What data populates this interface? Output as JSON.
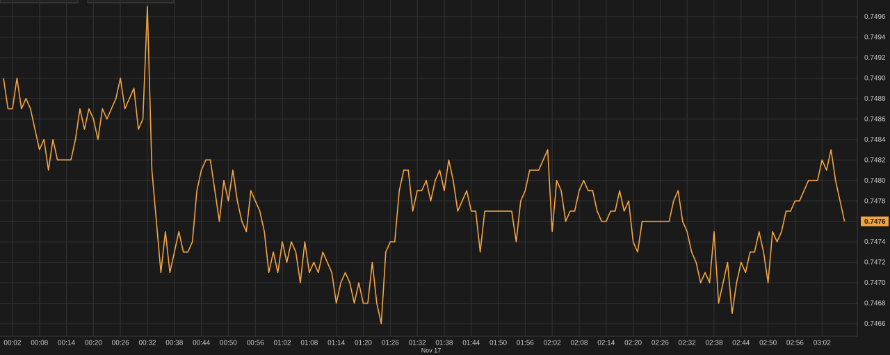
{
  "chart_data": {
    "type": "line",
    "date_label": "Nov 17",
    "color": "#f5a442",
    "grid": true,
    "xlim": [
      "00:00",
      "03:10"
    ],
    "xticks": [
      "00:02",
      "00:08",
      "00:14",
      "00:20",
      "00:26",
      "00:32",
      "00:38",
      "00:44",
      "00:50",
      "00:56",
      "01:02",
      "01:08",
      "01:14",
      "01:20",
      "01:26",
      "01:32",
      "01:38",
      "01:44",
      "01:50",
      "01:56",
      "02:02",
      "02:08",
      "02:14",
      "02:20",
      "02:26",
      "02:32",
      "02:38",
      "02:44",
      "02:50",
      "02:56",
      "03:02"
    ],
    "ylim": [
      0.7465,
      0.7498
    ],
    "yticks": [
      0.7466,
      0.7468,
      {
        "value": 0.747,
        "label": "0.7470"
      },
      0.7472,
      0.7474,
      0.7476,
      0.7478,
      {
        "value": 0.748,
        "label": "0.7480"
      },
      0.7482,
      0.7484,
      0.7486,
      0.7488,
      {
        "value": 0.749,
        "label": "0.7490"
      },
      0.7492,
      0.7494,
      0.7496
    ],
    "x": [
      "00:00",
      "00:01",
      "00:02",
      "00:03",
      "00:04",
      "00:05",
      "00:06",
      "00:07",
      "00:08",
      "00:09",
      "00:10",
      "00:11",
      "00:12",
      "00:15",
      "00:16",
      "00:17",
      "00:18",
      "00:19",
      "00:20",
      "00:21",
      "00:22",
      "00:23",
      "00:25",
      "00:26",
      "00:27",
      "00:29",
      "00:30",
      "00:31",
      "00:32",
      "00:33",
      "00:34",
      "00:35",
      "00:36",
      "00:37",
      "00:39",
      "00:40",
      "00:41",
      "00:42",
      "00:43",
      "00:44",
      "00:45",
      "00:46",
      "00:47",
      "00:48",
      "00:49",
      "00:50",
      "00:51",
      "00:52",
      "00:53",
      "00:54",
      "00:55",
      "00:57",
      "00:58",
      "00:59",
      "01:00",
      "01:01",
      "01:02",
      "01:03",
      "01:04",
      "01:05",
      "01:06",
      "01:07",
      "01:08",
      "01:09",
      "01:10",
      "01:11",
      "01:13",
      "01:14",
      "01:15",
      "01:16",
      "01:17",
      "01:18",
      "01:19",
      "01:20",
      "01:21",
      "01:22",
      "01:23",
      "01:24",
      "01:25",
      "01:26",
      "01:27",
      "01:28",
      "01:29",
      "01:30",
      "01:31",
      "01:32",
      "01:33",
      "01:34",
      "01:35",
      "01:36",
      "01:37",
      "01:38",
      "01:39",
      "01:40",
      "01:41",
      "01:43",
      "01:44",
      "01:45",
      "01:46",
      "01:47",
      "01:53",
      "01:54",
      "01:55",
      "01:56",
      "01:57",
      "01:59",
      "02:01",
      "02:02",
      "02:03",
      "02:04",
      "02:05",
      "02:06",
      "02:07",
      "02:08",
      "02:09",
      "02:10",
      "02:11",
      "02:12",
      "02:13",
      "02:14",
      "02:15",
      "02:16",
      "02:17",
      "02:18",
      "02:19",
      "02:20",
      "02:21",
      "02:22",
      "02:28",
      "02:29",
      "02:30",
      "02:31",
      "02:32",
      "02:33",
      "02:34",
      "02:35",
      "02:36",
      "02:37",
      "02:38",
      "02:39",
      "02:40",
      "02:41",
      "02:42",
      "02:43",
      "02:44",
      "02:45",
      "02:46",
      "02:47",
      "02:48",
      "02:49",
      "02:50",
      "02:51",
      "02:52",
      "02:53",
      "02:54",
      "02:55",
      "02:56",
      "02:57",
      "02:59",
      "03:01",
      "03:02",
      "03:03",
      "03:04",
      "03:05",
      "03:07"
    ],
    "values": [
      0.749,
      0.7487,
      0.7487,
      0.749,
      0.7487,
      0.7488,
      0.7487,
      0.7485,
      0.7483,
      0.7484,
      0.7481,
      0.7484,
      0.7482,
      0.7482,
      0.7484,
      0.7487,
      0.7485,
      0.7487,
      0.7486,
      0.7484,
      0.7487,
      0.7486,
      0.7488,
      0.749,
      0.7487,
      0.7489,
      0.7485,
      0.7486,
      0.7497,
      0.7481,
      0.7476,
      0.7471,
      0.7475,
      0.7471,
      0.7475,
      0.7473,
      0.7473,
      0.7474,
      0.7479,
      0.7481,
      0.7482,
      0.7482,
      0.7479,
      0.7476,
      0.748,
      0.7478,
      0.7481,
      0.7478,
      0.7476,
      0.7475,
      0.7479,
      0.7477,
      0.7475,
      0.7471,
      0.7473,
      0.7471,
      0.7474,
      0.7472,
      0.7474,
      0.7473,
      0.747,
      0.7474,
      0.7471,
      0.7472,
      0.7471,
      0.7473,
      0.7471,
      0.7468,
      0.747,
      0.7471,
      0.747,
      0.7468,
      0.747,
      0.7468,
      0.7468,
      0.7472,
      0.7468,
      0.7466,
      0.7473,
      0.7474,
      0.7474,
      0.7479,
      0.7481,
      0.7481,
      0.7477,
      0.7479,
      0.7479,
      0.748,
      0.7478,
      0.748,
      0.7481,
      0.7479,
      0.7482,
      0.748,
      0.7477,
      0.7479,
      0.7477,
      0.7477,
      0.7473,
      0.7477,
      0.7477,
      0.7474,
      0.7478,
      0.7479,
      0.7481,
      0.7481,
      0.7483,
      0.7475,
      0.748,
      0.7479,
      0.7476,
      0.7477,
      0.7477,
      0.7479,
      0.748,
      0.7479,
      0.7479,
      0.7477,
      0.7476,
      0.7476,
      0.7477,
      0.7477,
      0.7479,
      0.7477,
      0.7478,
      0.7474,
      0.7473,
      0.7476,
      0.7476,
      0.7478,
      0.7479,
      0.7476,
      0.7475,
      0.7473,
      0.7472,
      0.747,
      0.7471,
      0.747,
      0.7475,
      0.7468,
      0.747,
      0.7472,
      0.7467,
      0.747,
      0.7472,
      0.7471,
      0.7473,
      0.7473,
      0.7475,
      0.7473,
      0.747,
      0.7475,
      0.7474,
      0.7475,
      0.7477,
      0.7477,
      0.7478,
      0.7478,
      0.748,
      0.748,
      0.7482,
      0.7481,
      0.7483,
      0.748,
      0.7476
    ]
  }
}
